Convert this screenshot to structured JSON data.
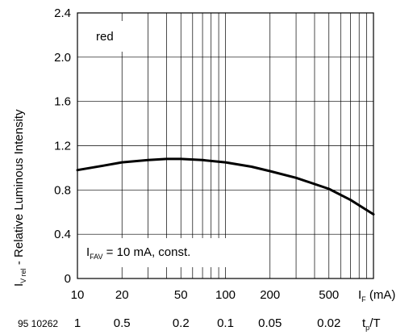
{
  "chart_data": {
    "type": "line",
    "title": "",
    "figure_id": "95 10262",
    "ylabel": {
      "main": "I",
      "sub": "V rel",
      "rest": " - Relative Luminous Intensity"
    },
    "xlabel": {
      "main": "I",
      "sub": "F",
      "unit": " (mA)"
    },
    "x2label": {
      "main": "t",
      "sub": "p",
      "rest": "/T"
    },
    "x_scale": "log",
    "xlim": [
      10,
      1000
    ],
    "ylim": [
      0,
      2.4
    ],
    "x_ticks": [
      {
        "value": 10,
        "label": "10"
      },
      {
        "value": 20,
        "label": "20"
      },
      {
        "value": 50,
        "label": "50"
      },
      {
        "value": 100,
        "label": "100"
      },
      {
        "value": 200,
        "label": "200"
      },
      {
        "value": 500,
        "label": "500"
      }
    ],
    "x2_ticks": [
      {
        "value": 10,
        "label": "1"
      },
      {
        "value": 20,
        "label": "0.5"
      },
      {
        "value": 50,
        "label": "0.2"
      },
      {
        "value": 100,
        "label": "0.1"
      },
      {
        "value": 200,
        "label": "0.05"
      },
      {
        "value": 500,
        "label": "0.02"
      }
    ],
    "y_ticks": [
      {
        "value": 0,
        "label": "0"
      },
      {
        "value": 0.4,
        "label": "0.4"
      },
      {
        "value": 0.8,
        "label": "0.8"
      },
      {
        "value": 1.2,
        "label": "1.2"
      },
      {
        "value": 1.6,
        "label": "1.6"
      },
      {
        "value": 2.0,
        "label": "2.0"
      },
      {
        "value": 2.4,
        "label": "2.4"
      }
    ],
    "grid": true,
    "series": [
      {
        "name": "red",
        "color": "#000000",
        "x": [
          10,
          15,
          20,
          30,
          40,
          50,
          70,
          100,
          150,
          200,
          300,
          500,
          700,
          1000
        ],
        "y": [
          0.98,
          1.02,
          1.05,
          1.07,
          1.08,
          1.08,
          1.07,
          1.05,
          1.01,
          0.97,
          0.91,
          0.81,
          0.71,
          0.58
        ]
      }
    ],
    "annotations": {
      "legend": "red",
      "condition": {
        "main": "I",
        "sub": "FAV",
        "rest": " = 10 mA, const."
      }
    }
  }
}
